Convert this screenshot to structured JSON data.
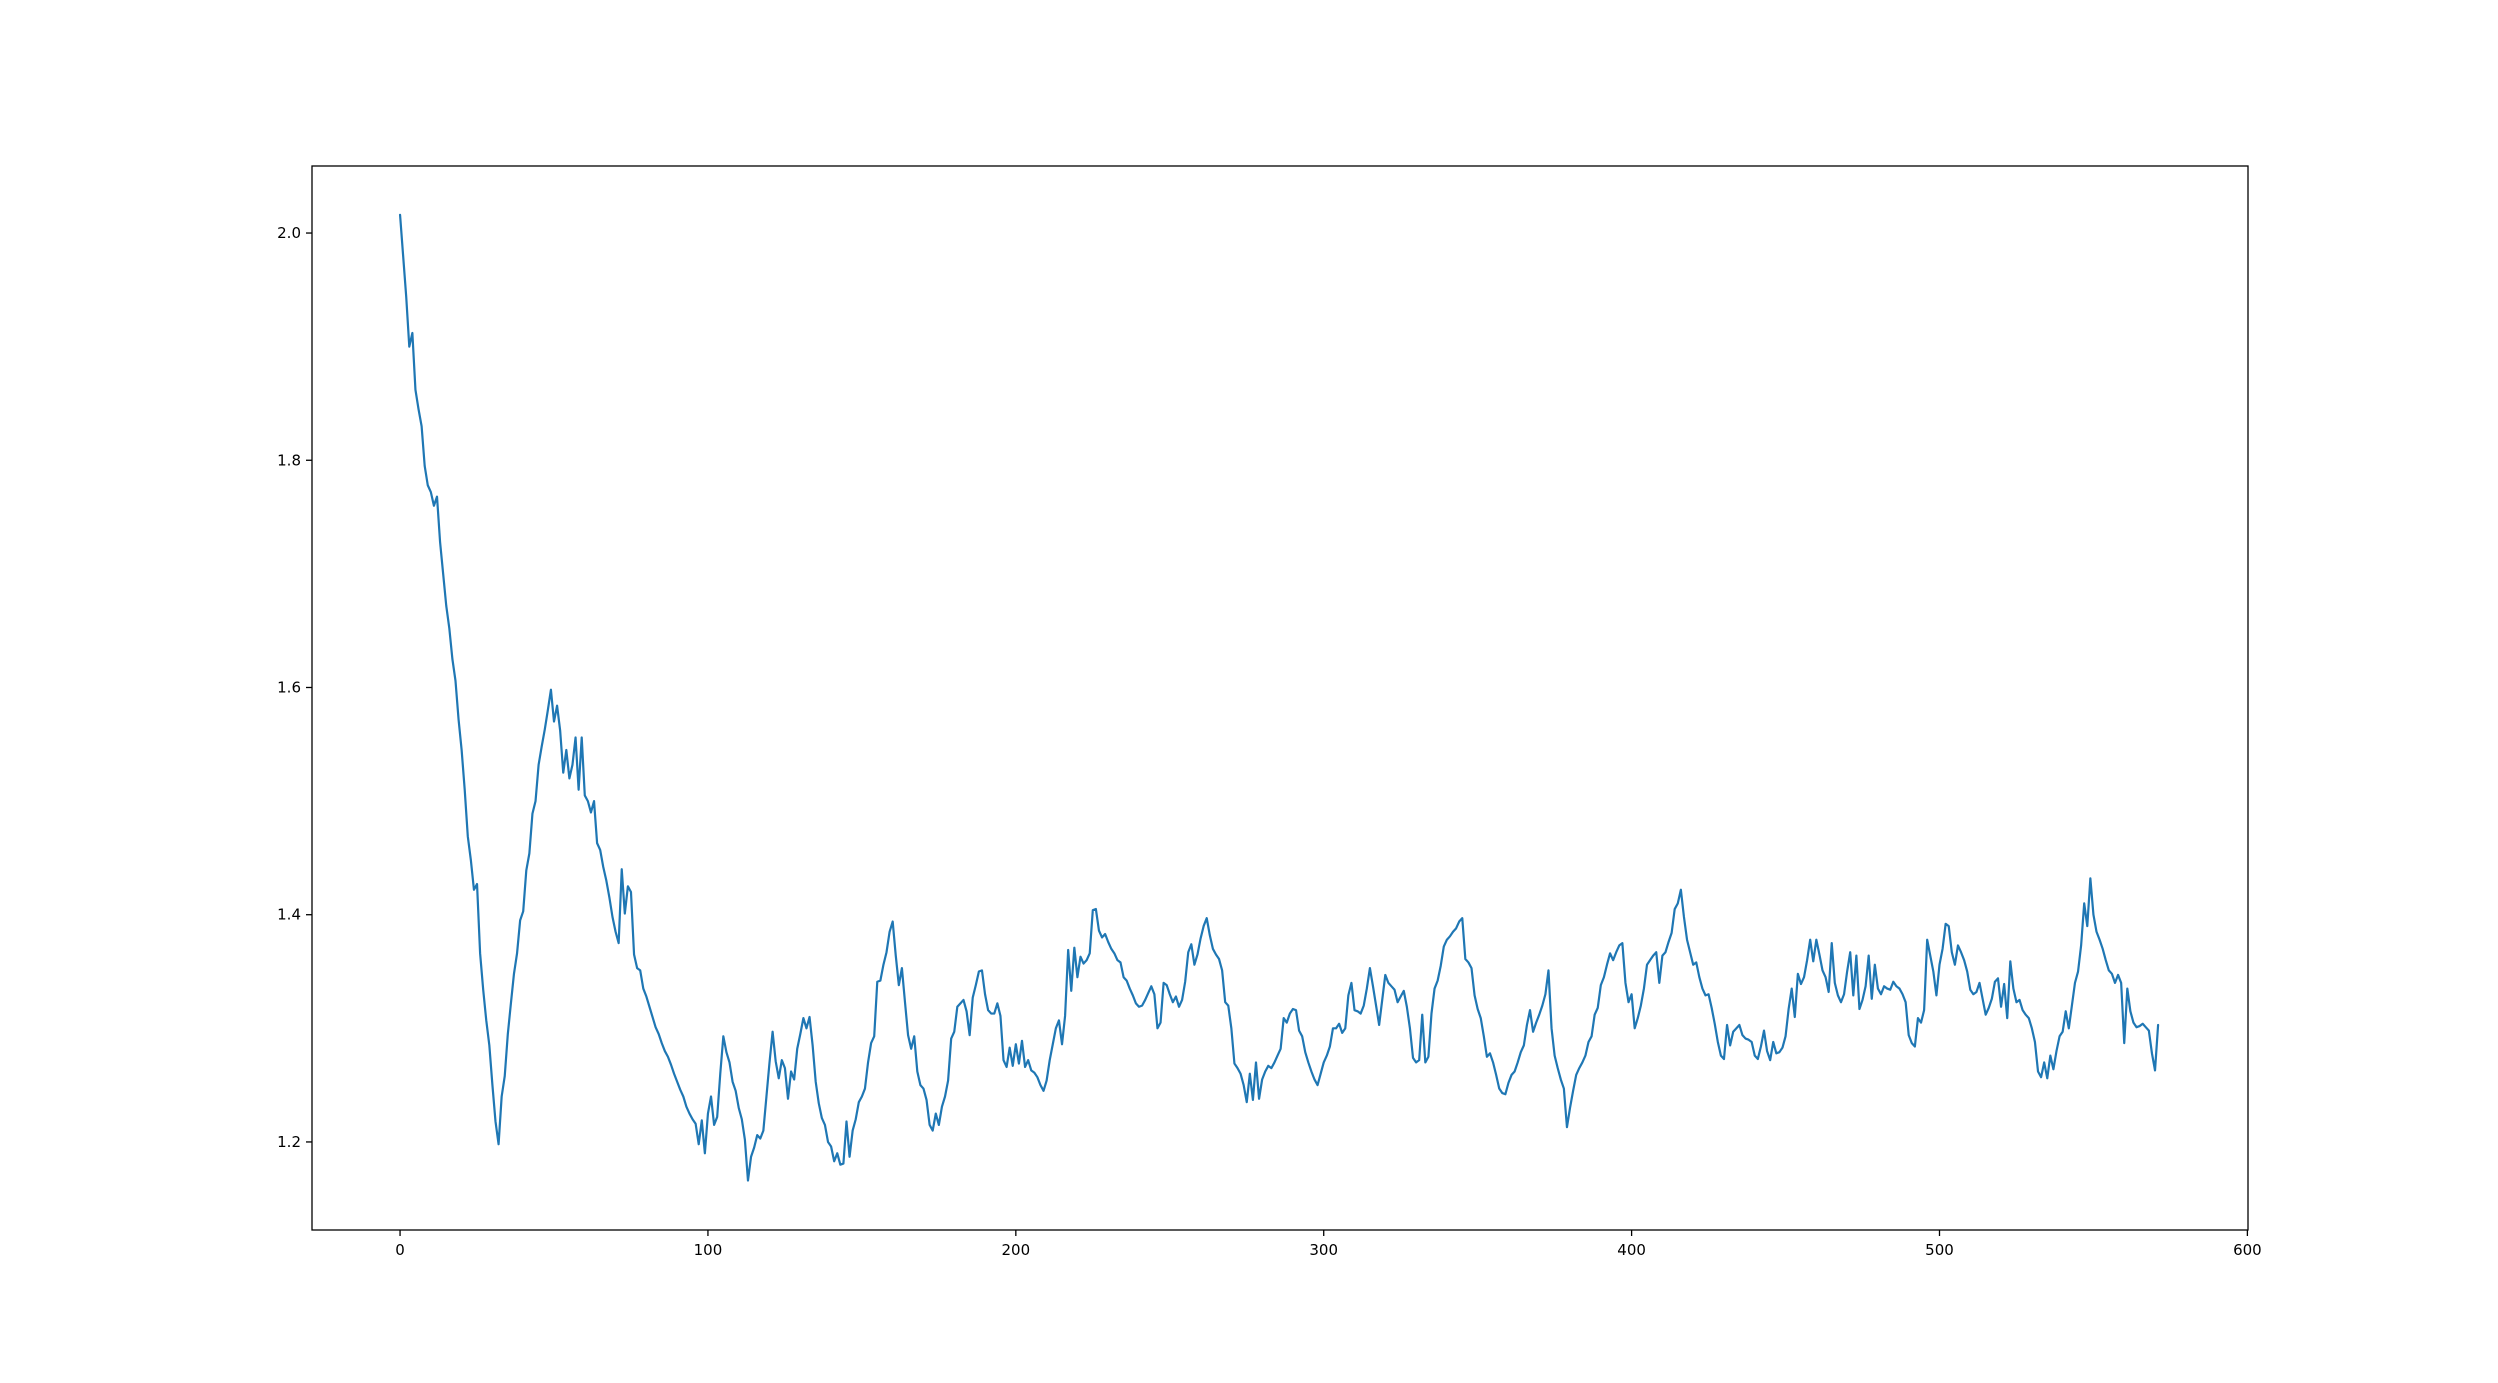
{
  "chart_data": {
    "type": "line",
    "title": "",
    "xlabel": "",
    "ylabel": "",
    "grid": false,
    "legend": null,
    "line_color": "#1f77b4",
    "background_color": "#ffffff",
    "axes": {
      "xlim": [
        -28.6,
        600.2
      ],
      "ylim": [
        1.1225,
        2.059
      ],
      "xticks": [
        0,
        100,
        200,
        300,
        400,
        500,
        600
      ],
      "xtick_labels": [
        "0",
        "100",
        "200",
        "300",
        "400",
        "500",
        "600"
      ],
      "yticks": [
        1.2,
        1.4,
        1.6,
        1.8,
        2.0
      ],
      "ytick_labels": [
        "1.2",
        "1.4",
        "1.6",
        "1.8",
        "2.0"
      ]
    },
    "series": [
      {
        "x_start": 0,
        "x_step": 1,
        "y": [
          2.016,
          1.98,
          1.944,
          1.9,
          1.912,
          1.862,
          1.845,
          1.83,
          1.795,
          1.778,
          1.772,
          1.76,
          1.768,
          1.728,
          1.7,
          1.672,
          1.652,
          1.625,
          1.606,
          1.572,
          1.545,
          1.51,
          1.469,
          1.448,
          1.422,
          1.427,
          1.366,
          1.334,
          1.307,
          1.285,
          1.25,
          1.218,
          1.198,
          1.24,
          1.258,
          1.295,
          1.322,
          1.348,
          1.366,
          1.395,
          1.403,
          1.439,
          1.454,
          1.489,
          1.5,
          1.532,
          1.548,
          1.563,
          1.58,
          1.598,
          1.57,
          1.584,
          1.562,
          1.525,
          1.545,
          1.52,
          1.532,
          1.556,
          1.51,
          1.556,
          1.505,
          1.5,
          1.49,
          1.5,
          1.463,
          1.457,
          1.442,
          1.43,
          1.415,
          1.398,
          1.385,
          1.375,
          1.44,
          1.401,
          1.425,
          1.42,
          1.365,
          1.353,
          1.351,
          1.335,
          1.328,
          1.319,
          1.31,
          1.301,
          1.295,
          1.287,
          1.28,
          1.275,
          1.268,
          1.26,
          1.253,
          1.246,
          1.24,
          1.231,
          1.225,
          1.22,
          1.216,
          1.198,
          1.219,
          1.19,
          1.225,
          1.24,
          1.215,
          1.222,
          1.26,
          1.293,
          1.279,
          1.27,
          1.253,
          1.245,
          1.23,
          1.22,
          1.202,
          1.166,
          1.187,
          1.195,
          1.206,
          1.203,
          1.21,
          1.24,
          1.27,
          1.297,
          1.271,
          1.256,
          1.272,
          1.265,
          1.238,
          1.262,
          1.255,
          1.282,
          1.295,
          1.309,
          1.3,
          1.31,
          1.285,
          1.253,
          1.234,
          1.221,
          1.215,
          1.2,
          1.196,
          1.183,
          1.19,
          1.18,
          1.181,
          1.218,
          1.187,
          1.21,
          1.22,
          1.235,
          1.24,
          1.247,
          1.27,
          1.287,
          1.293,
          1.341,
          1.342,
          1.356,
          1.367,
          1.385,
          1.394,
          1.364,
          1.338,
          1.353,
          1.323,
          1.294,
          1.282,
          1.293,
          1.262,
          1.25,
          1.247,
          1.237,
          1.215,
          1.21,
          1.225,
          1.215,
          1.231,
          1.24,
          1.254,
          1.291,
          1.297,
          1.319,
          1.322,
          1.325,
          1.315,
          1.294,
          1.327,
          1.338,
          1.35,
          1.351,
          1.33,
          1.316,
          1.313,
          1.313,
          1.322,
          1.311,
          1.272,
          1.266,
          1.283,
          1.267,
          1.286,
          1.269,
          1.289,
          1.266,
          1.272,
          1.263,
          1.261,
          1.257,
          1.25,
          1.245,
          1.254,
          1.272,
          1.286,
          1.3,
          1.307,
          1.286,
          1.311,
          1.369,
          1.333,
          1.371,
          1.345,
          1.363,
          1.357,
          1.36,
          1.366,
          1.404,
          1.405,
          1.386,
          1.38,
          1.383,
          1.376,
          1.37,
          1.366,
          1.36,
          1.358,
          1.345,
          1.342,
          1.335,
          1.329,
          1.322,
          1.319,
          1.32,
          1.325,
          1.331,
          1.337,
          1.33,
          1.3,
          1.305,
          1.34,
          1.338,
          1.33,
          1.323,
          1.328,
          1.319,
          1.325,
          1.341,
          1.367,
          1.374,
          1.356,
          1.365,
          1.379,
          1.39,
          1.397,
          1.382,
          1.37,
          1.365,
          1.361,
          1.351,
          1.323,
          1.32,
          1.3,
          1.269,
          1.265,
          1.26,
          1.25,
          1.235,
          1.26,
          1.237,
          1.27,
          1.238,
          1.255,
          1.262,
          1.267,
          1.265,
          1.27,
          1.276,
          1.282,
          1.309,
          1.305,
          1.313,
          1.317,
          1.316,
          1.298,
          1.293,
          1.279,
          1.27,
          1.262,
          1.255,
          1.25,
          1.26,
          1.27,
          1.276,
          1.284,
          1.3,
          1.3,
          1.304,
          1.296,
          1.3,
          1.329,
          1.34,
          1.316,
          1.315,
          1.313,
          1.32,
          1.335,
          1.353,
          1.337,
          1.32,
          1.303,
          1.325,
          1.347,
          1.34,
          1.337,
          1.334,
          1.323,
          1.328,
          1.333,
          1.319,
          1.3,
          1.274,
          1.27,
          1.272,
          1.312,
          1.27,
          1.275,
          1.313,
          1.335,
          1.342,
          1.355,
          1.372,
          1.378,
          1.381,
          1.385,
          1.388,
          1.394,
          1.397,
          1.361,
          1.358,
          1.353,
          1.329,
          1.317,
          1.309,
          1.293,
          1.275,
          1.278,
          1.27,
          1.259,
          1.247,
          1.243,
          1.242,
          1.252,
          1.259,
          1.262,
          1.27,
          1.279,
          1.285,
          1.303,
          1.316,
          1.297,
          1.305,
          1.312,
          1.32,
          1.33,
          1.351,
          1.3,
          1.276,
          1.265,
          1.255,
          1.247,
          1.213,
          1.23,
          1.245,
          1.259,
          1.265,
          1.27,
          1.276,
          1.288,
          1.293,
          1.312,
          1.318,
          1.338,
          1.345,
          1.356,
          1.366,
          1.36,
          1.367,
          1.373,
          1.375,
          1.34,
          1.323,
          1.33,
          1.3,
          1.309,
          1.32,
          1.335,
          1.356,
          1.36,
          1.364,
          1.367,
          1.34,
          1.364,
          1.367,
          1.376,
          1.384,
          1.405,
          1.41,
          1.422,
          1.398,
          1.378,
          1.367,
          1.356,
          1.358,
          1.345,
          1.335,
          1.329,
          1.33,
          1.318,
          1.304,
          1.288,
          1.276,
          1.273,
          1.303,
          1.285,
          1.297,
          1.3,
          1.303,
          1.294,
          1.291,
          1.29,
          1.288,
          1.276,
          1.273,
          1.284,
          1.298,
          1.28,
          1.272,
          1.288,
          1.278,
          1.279,
          1.283,
          1.293,
          1.317,
          1.335,
          1.31,
          1.348,
          1.339,
          1.345,
          1.36,
          1.378,
          1.359,
          1.378,
          1.365,
          1.351,
          1.345,
          1.332,
          1.375,
          1.34,
          1.329,
          1.323,
          1.33,
          1.35,
          1.367,
          1.329,
          1.364,
          1.317,
          1.325,
          1.337,
          1.364,
          1.326,
          1.356,
          1.335,
          1.33,
          1.337,
          1.335,
          1.334,
          1.341,
          1.337,
          1.335,
          1.33,
          1.323,
          1.294,
          1.287,
          1.284,
          1.309,
          1.305,
          1.316,
          1.378,
          1.364,
          1.35,
          1.329,
          1.356,
          1.37,
          1.392,
          1.39,
          1.367,
          1.356,
          1.373,
          1.367,
          1.36,
          1.35,
          1.334,
          1.33,
          1.332,
          1.34,
          1.326,
          1.312,
          1.318,
          1.326,
          1.341,
          1.344,
          1.319,
          1.339,
          1.309,
          1.359,
          1.335,
          1.323,
          1.325,
          1.316,
          1.312,
          1.309,
          1.3,
          1.288,
          1.262,
          1.257,
          1.27,
          1.256,
          1.276,
          1.264,
          1.28,
          1.293,
          1.297,
          1.315,
          1.3,
          1.32,
          1.34,
          1.35,
          1.373,
          1.41,
          1.39,
          1.432,
          1.4,
          1.385,
          1.378,
          1.37,
          1.36,
          1.351,
          1.348,
          1.34,
          1.347,
          1.34,
          1.287,
          1.335,
          1.315,
          1.305,
          1.301,
          1.302,
          1.304,
          1.301,
          1.298,
          1.278,
          1.263,
          1.303
        ]
      }
    ]
  }
}
